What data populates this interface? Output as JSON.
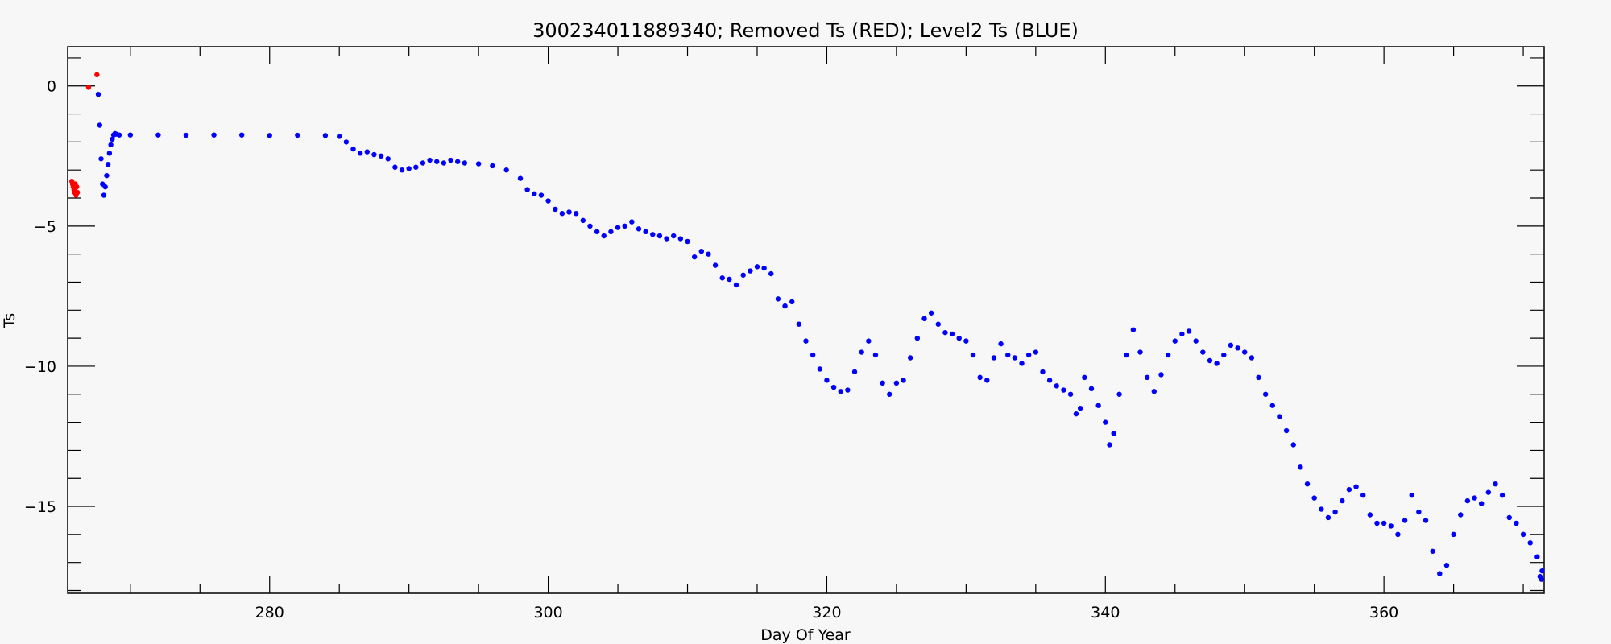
{
  "chart_data": {
    "type": "scatter",
    "title": "300234011889340; Removed Ts (RED); Level2 Ts (BLUE)",
    "xlabel": "Day Of Year",
    "ylabel": "Ts",
    "xlim": [
      265.5,
      371.5
    ],
    "ylim": [
      -18.1,
      1.4
    ],
    "xticks": [
      280,
      300,
      320,
      340,
      360
    ],
    "yticks": [
      0,
      -5,
      -10,
      -15
    ],
    "grid": false,
    "series": [
      {
        "name": "Removed Ts",
        "color": "#ff0000",
        "points": [
          [
            265.8,
            -3.4
          ],
          [
            265.85,
            -3.5
          ],
          [
            265.9,
            -3.6
          ],
          [
            265.95,
            -3.7
          ],
          [
            266.0,
            -3.8
          ],
          [
            266.05,
            -3.5
          ],
          [
            266.1,
            -3.9
          ],
          [
            266.15,
            -3.6
          ],
          [
            266.2,
            -3.8
          ],
          [
            267.0,
            -0.05
          ],
          [
            267.6,
            0.4
          ]
        ]
      },
      {
        "name": "Level2 Ts",
        "color": "#0000ff",
        "points": [
          [
            267.7,
            -0.3
          ],
          [
            267.8,
            -1.4
          ],
          [
            267.9,
            -2.6
          ],
          [
            268.0,
            -3.5
          ],
          [
            268.1,
            -3.9
          ],
          [
            268.2,
            -3.6
          ],
          [
            268.3,
            -3.2
          ],
          [
            268.4,
            -2.8
          ],
          [
            268.5,
            -2.4
          ],
          [
            268.6,
            -2.1
          ],
          [
            268.7,
            -1.9
          ],
          [
            268.8,
            -1.75
          ],
          [
            268.9,
            -1.7
          ],
          [
            269.0,
            -1.72
          ],
          [
            269.2,
            -1.75
          ],
          [
            270,
            -1.75
          ],
          [
            272,
            -1.75
          ],
          [
            274,
            -1.76
          ],
          [
            276,
            -1.75
          ],
          [
            278,
            -1.75
          ],
          [
            280,
            -1.77
          ],
          [
            282,
            -1.76
          ],
          [
            284,
            -1.77
          ],
          [
            285,
            -1.8
          ],
          [
            285.5,
            -2.0
          ],
          [
            286,
            -2.25
          ],
          [
            286.5,
            -2.4
          ],
          [
            287,
            -2.35
          ],
          [
            287.5,
            -2.45
          ],
          [
            288,
            -2.5
          ],
          [
            288.5,
            -2.6
          ],
          [
            289,
            -2.9
          ],
          [
            289.5,
            -3.0
          ],
          [
            290,
            -2.95
          ],
          [
            290.5,
            -2.9
          ],
          [
            291,
            -2.75
          ],
          [
            291.5,
            -2.65
          ],
          [
            292,
            -2.7
          ],
          [
            292.5,
            -2.75
          ],
          [
            293,
            -2.65
          ],
          [
            293.5,
            -2.7
          ],
          [
            294,
            -2.75
          ],
          [
            295,
            -2.78
          ],
          [
            296,
            -2.85
          ],
          [
            297,
            -3.0
          ],
          [
            298,
            -3.3
          ],
          [
            298.5,
            -3.7
          ],
          [
            299,
            -3.85
          ],
          [
            299.5,
            -3.9
          ],
          [
            300,
            -4.1
          ],
          [
            300.5,
            -4.4
          ],
          [
            301,
            -4.55
          ],
          [
            301.5,
            -4.5
          ],
          [
            302,
            -4.55
          ],
          [
            302.5,
            -4.8
          ],
          [
            303,
            -5.0
          ],
          [
            303.5,
            -5.2
          ],
          [
            304,
            -5.35
          ],
          [
            304.5,
            -5.2
          ],
          [
            305,
            -5.05
          ],
          [
            305.5,
            -5.0
          ],
          [
            306,
            -4.85
          ],
          [
            306.5,
            -5.1
          ],
          [
            307,
            -5.2
          ],
          [
            307.5,
            -5.3
          ],
          [
            308,
            -5.35
          ],
          [
            308.5,
            -5.45
          ],
          [
            309,
            -5.35
          ],
          [
            309.5,
            -5.45
          ],
          [
            310,
            -5.55
          ],
          [
            310.5,
            -6.1
          ],
          [
            311,
            -5.9
          ],
          [
            311.5,
            -6.0
          ],
          [
            312,
            -6.4
          ],
          [
            312.5,
            -6.85
          ],
          [
            313,
            -6.9
          ],
          [
            313.5,
            -7.1
          ],
          [
            314,
            -6.75
          ],
          [
            314.5,
            -6.6
          ],
          [
            315,
            -6.45
          ],
          [
            315.5,
            -6.5
          ],
          [
            316,
            -6.7
          ],
          [
            316.5,
            -7.6
          ],
          [
            317,
            -7.85
          ],
          [
            317.5,
            -7.7
          ],
          [
            318,
            -8.5
          ],
          [
            318.5,
            -9.1
          ],
          [
            319,
            -9.6
          ],
          [
            319.5,
            -10.1
          ],
          [
            320,
            -10.5
          ],
          [
            320.5,
            -10.75
          ],
          [
            321,
            -10.9
          ],
          [
            321.5,
            -10.85
          ],
          [
            322,
            -10.2
          ],
          [
            322.5,
            -9.5
          ],
          [
            323,
            -9.1
          ],
          [
            323.5,
            -9.6
          ],
          [
            324,
            -10.6
          ],
          [
            324.5,
            -11.0
          ],
          [
            325,
            -10.6
          ],
          [
            325.5,
            -10.5
          ],
          [
            326,
            -9.7
          ],
          [
            326.5,
            -9.0
          ],
          [
            327,
            -8.3
          ],
          [
            327.5,
            -8.1
          ],
          [
            328,
            -8.5
          ],
          [
            328.5,
            -8.8
          ],
          [
            329,
            -8.85
          ],
          [
            329.5,
            -9.0
          ],
          [
            330,
            -9.1
          ],
          [
            330.5,
            -9.6
          ],
          [
            331,
            -10.4
          ],
          [
            331.5,
            -10.5
          ],
          [
            332,
            -9.7
          ],
          [
            332.5,
            -9.2
          ],
          [
            333,
            -9.6
          ],
          [
            333.5,
            -9.7
          ],
          [
            334,
            -9.9
          ],
          [
            334.5,
            -9.6
          ],
          [
            335,
            -9.5
          ],
          [
            335.5,
            -10.2
          ],
          [
            336,
            -10.5
          ],
          [
            336.5,
            -10.7
          ],
          [
            337,
            -10.85
          ],
          [
            337.5,
            -11.0
          ],
          [
            337.9,
            -11.7
          ],
          [
            338.2,
            -11.5
          ],
          [
            338.5,
            -10.4
          ],
          [
            339,
            -10.8
          ],
          [
            339.5,
            -11.4
          ],
          [
            340,
            -12.0
          ],
          [
            340.3,
            -12.8
          ],
          [
            340.6,
            -12.4
          ],
          [
            341,
            -11.0
          ],
          [
            341.5,
            -9.6
          ],
          [
            342,
            -8.7
          ],
          [
            342.5,
            -9.5
          ],
          [
            343,
            -10.4
          ],
          [
            343.5,
            -10.9
          ],
          [
            344,
            -10.3
          ],
          [
            344.5,
            -9.6
          ],
          [
            345,
            -9.1
          ],
          [
            345.5,
            -8.85
          ],
          [
            346,
            -8.75
          ],
          [
            346.5,
            -9.1
          ],
          [
            347,
            -9.5
          ],
          [
            347.5,
            -9.8
          ],
          [
            348,
            -9.9
          ],
          [
            348.5,
            -9.6
          ],
          [
            349,
            -9.25
          ],
          [
            349.5,
            -9.35
          ],
          [
            350,
            -9.5
          ],
          [
            350.5,
            -9.7
          ],
          [
            351,
            -10.4
          ],
          [
            351.5,
            -11.0
          ],
          [
            352,
            -11.4
          ],
          [
            352.5,
            -11.8
          ],
          [
            353,
            -12.3
          ],
          [
            353.5,
            -12.8
          ],
          [
            354,
            -13.6
          ],
          [
            354.5,
            -14.2
          ],
          [
            355,
            -14.7
          ],
          [
            355.5,
            -15.1
          ],
          [
            356,
            -15.4
          ],
          [
            356.5,
            -15.2
          ],
          [
            357,
            -14.8
          ],
          [
            357.5,
            -14.4
          ],
          [
            358,
            -14.3
          ],
          [
            358.5,
            -14.6
          ],
          [
            359,
            -15.3
          ],
          [
            359.5,
            -15.6
          ],
          [
            360,
            -15.6
          ],
          [
            360.5,
            -15.7
          ],
          [
            361,
            -16.0
          ],
          [
            361.5,
            -15.5
          ],
          [
            362,
            -14.6
          ],
          [
            362.5,
            -15.2
          ],
          [
            363,
            -15.5
          ],
          [
            363.5,
            -16.6
          ],
          [
            364,
            -17.4
          ],
          [
            364.5,
            -17.1
          ],
          [
            365,
            -16.0
          ],
          [
            365.5,
            -15.3
          ],
          [
            366,
            -14.8
          ],
          [
            366.5,
            -14.7
          ],
          [
            367,
            -14.9
          ],
          [
            367.5,
            -14.5
          ],
          [
            368,
            -14.2
          ],
          [
            368.5,
            -14.6
          ],
          [
            369,
            -15.4
          ],
          [
            369.5,
            -15.6
          ],
          [
            370,
            -16.0
          ],
          [
            370.5,
            -16.3
          ],
          [
            371,
            -16.8
          ],
          [
            371.3,
            -17.6
          ],
          [
            371.2,
            -17.5
          ],
          [
            371.35,
            -17.3
          ]
        ]
      }
    ]
  }
}
